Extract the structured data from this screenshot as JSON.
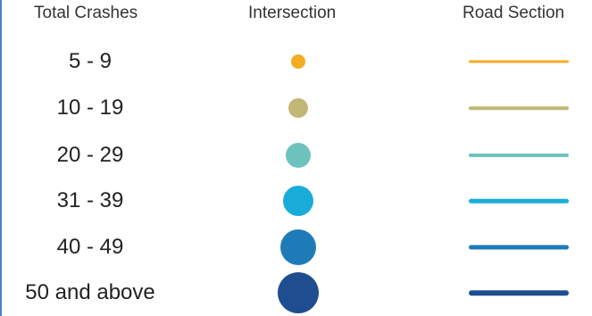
{
  "headers": {
    "total_crashes": "Total Crashes",
    "intersection": "Intersection",
    "road_section": "Road Section"
  },
  "rows": [
    {
      "label": "5 - 9",
      "color": "#f5ac22",
      "level": 1
    },
    {
      "label": "10 - 19",
      "color": "#c2b774",
      "level": 2
    },
    {
      "label": "20 - 29",
      "color": "#6ec2be",
      "level": 3
    },
    {
      "label": "31 - 39",
      "color": "#19acd9",
      "level": 4
    },
    {
      "label": "40 - 49",
      "color": "#1f7bb8",
      "level": 5
    },
    {
      "label": "50 and above",
      "color": "#1e4e90",
      "level": 6
    }
  ]
}
